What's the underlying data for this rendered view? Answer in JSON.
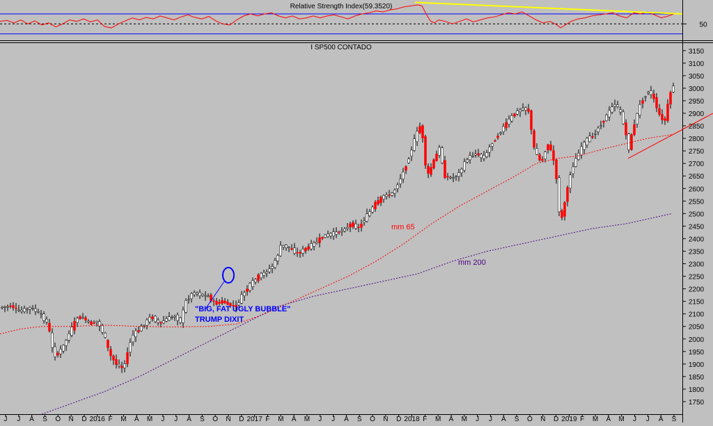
{
  "chart_data": [
    {
      "type": "line",
      "title": "Relative Strength Index(59.3520)",
      "y_ticks": [
        50
      ],
      "ylim": [
        20,
        95
      ],
      "reference_levels": [
        70,
        50,
        30
      ],
      "series": [
        {
          "role": "rsi",
          "color": "#ff0000",
          "points": [
            [
              0,
              55
            ],
            [
              10,
              57
            ],
            [
              20,
              52
            ],
            [
              30,
              58
            ],
            [
              40,
              50
            ],
            [
              50,
              56
            ],
            [
              60,
              48
            ],
            [
              70,
              52
            ],
            [
              80,
              44
            ],
            [
              90,
              50
            ],
            [
              100,
              58
            ],
            [
              110,
              55
            ],
            [
              120,
              60
            ],
            [
              130,
              54
            ],
            [
              140,
              58
            ],
            [
              150,
              45
            ],
            [
              160,
              42
            ],
            [
              170,
              50
            ],
            [
              180,
              56
            ],
            [
              190,
              62
            ],
            [
              200,
              58
            ],
            [
              210,
              63
            ],
            [
              220,
              60
            ],
            [
              230,
              66
            ],
            [
              240,
              62
            ],
            [
              250,
              58
            ],
            [
              260,
              64
            ],
            [
              270,
              68
            ],
            [
              280,
              63
            ],
            [
              290,
              60
            ],
            [
              300,
              65
            ],
            [
              310,
              56
            ],
            [
              320,
              50
            ],
            [
              330,
              48
            ],
            [
              340,
              58
            ],
            [
              350,
              66
            ],
            [
              360,
              70
            ],
            [
              370,
              66
            ],
            [
              380,
              70
            ],
            [
              390,
              72
            ],
            [
              400,
              66
            ],
            [
              410,
              62
            ],
            [
              420,
              66
            ],
            [
              430,
              60
            ],
            [
              440,
              62
            ],
            [
              450,
              66
            ],
            [
              460,
              62
            ],
            [
              470,
              66
            ],
            [
              480,
              68
            ],
            [
              490,
              64
            ],
            [
              500,
              60
            ],
            [
              510,
              66
            ],
            [
              520,
              70
            ],
            [
              530,
              72
            ],
            [
              540,
              76
            ],
            [
              550,
              74
            ],
            [
              560,
              78
            ],
            [
              570,
              80
            ],
            [
              580,
              84
            ],
            [
              590,
              86
            ],
            [
              600,
              88
            ],
            [
              606,
              86
            ],
            [
              612,
              70
            ],
            [
              618,
              56
            ],
            [
              624,
              52
            ],
            [
              630,
              58
            ],
            [
              640,
              55
            ],
            [
              650,
              50
            ],
            [
              660,
              55
            ],
            [
              670,
              60
            ],
            [
              680,
              54
            ],
            [
              690,
              58
            ],
            [
              700,
              62
            ],
            [
              710,
              64
            ],
            [
              720,
              68
            ],
            [
              730,
              72
            ],
            [
              740,
              70
            ],
            [
              750,
              74
            ],
            [
              760,
              66
            ],
            [
              770,
              58
            ],
            [
              780,
              52
            ],
            [
              790,
              55
            ],
            [
              800,
              48
            ],
            [
              805,
              42
            ],
            [
              812,
              48
            ],
            [
              820,
              55
            ],
            [
              830,
              60
            ],
            [
              840,
              62
            ],
            [
              850,
              66
            ],
            [
              860,
              68
            ],
            [
              870,
              70
            ],
            [
              880,
              72
            ],
            [
              890,
              66
            ],
            [
              900,
              62
            ],
            [
              910,
              72
            ],
            [
              920,
              70
            ],
            [
              930,
              74
            ],
            [
              940,
              68
            ],
            [
              950,
              62
            ],
            [
              960,
              66
            ],
            [
              968,
              70
            ]
          ]
        },
        {
          "role": "trendline",
          "color": "#ffff00",
          "points": [
            [
              596,
              93
            ],
            [
              980,
              70
            ]
          ]
        }
      ]
    },
    {
      "type": "bar",
      "subtype": "candlestick",
      "title": "I SP500 CONTADO",
      "x_ticks": [
        "J",
        "J",
        "A",
        "S",
        "O",
        "N",
        "D",
        "2016",
        "F",
        "M",
        "A",
        "M",
        "J",
        "J",
        "A",
        "S",
        "O",
        "N",
        "D",
        "2017",
        "F",
        "M",
        "A",
        "M",
        "J",
        "J",
        "A",
        "S",
        "O",
        "N",
        "D",
        "2018",
        "F",
        "M",
        "A",
        "M",
        "J",
        "J",
        "A",
        "S",
        "O",
        "N",
        "D",
        "2019",
        "F",
        "M",
        "A",
        "M",
        "J",
        "J",
        "A",
        "S"
      ],
      "y_ticks": [
        1750,
        1800,
        1850,
        1900,
        1950,
        2000,
        2050,
        2100,
        2150,
        2200,
        2250,
        2300,
        2350,
        2400,
        2450,
        2500,
        2550,
        2600,
        2650,
        2700,
        2750,
        2800,
        2850,
        2900,
        2950,
        3000,
        3050,
        3100,
        3150
      ],
      "ylim": [
        1700,
        3180
      ],
      "annotations": [
        "\"BIG, FAT UGLY BUBBLE\"",
        "TRUMP DIXIT"
      ],
      "series": [
        {
          "name": "mm 65",
          "color": "#ff0000",
          "points": [
            [
              0,
              2020
            ],
            [
              30,
              2040
            ],
            [
              60,
              2050
            ],
            [
              100,
              2050
            ],
            [
              150,
              2055
            ],
            [
              200,
              2050
            ],
            [
              250,
              2048
            ],
            [
              300,
              2050
            ],
            [
              340,
              2060
            ],
            [
              380,
              2100
            ],
            [
              420,
              2150
            ],
            [
              460,
              2200
            ],
            [
              500,
              2250
            ],
            [
              540,
              2310
            ],
            [
              580,
              2380
            ],
            [
              620,
              2460
            ],
            [
              660,
              2530
            ],
            [
              700,
              2590
            ],
            [
              740,
              2650
            ],
            [
              770,
              2700
            ],
            [
              800,
              2720
            ],
            [
              830,
              2730
            ],
            [
              870,
              2760
            ],
            [
              900,
              2780
            ],
            [
              930,
              2800
            ],
            [
              965,
              2815
            ]
          ]
        },
        {
          "name": "mm 200",
          "color": "#4b0082",
          "points": [
            [
              60,
              1700
            ],
            [
              100,
              1740
            ],
            [
              150,
              1790
            ],
            [
              200,
              1850
            ],
            [
              250,
              1920
            ],
            [
              300,
              1990
            ],
            [
              350,
              2060
            ],
            [
              400,
              2130
            ],
            [
              450,
              2170
            ],
            [
              500,
              2200
            ],
            [
              550,
              2230
            ],
            [
              600,
              2260
            ],
            [
              650,
              2310
            ],
            [
              700,
              2350
            ],
            [
              750,
              2380
            ],
            [
              800,
              2410
            ],
            [
              850,
              2440
            ],
            [
              900,
              2460
            ],
            [
              965,
              2500
            ]
          ]
        },
        {
          "role": "trendline",
          "color": "#ff0000",
          "points": [
            [
              902,
              2720
            ],
            [
              1024,
              2900
            ]
          ]
        },
        {
          "role": "price",
          "colors": {
            "up": "#ffffff",
            "down": "#ff0000",
            "wick": "#000000"
          },
          "anchors": [
            [
              0,
              2125
            ],
            [
              18,
              2132
            ],
            [
              28,
              2110
            ],
            [
              45,
              2125
            ],
            [
              58,
              2100
            ],
            [
              70,
              2060
            ],
            [
              78,
              1930
            ],
            [
              90,
              1960
            ],
            [
              100,
              2020
            ],
            [
              112,
              2085
            ],
            [
              120,
              2085
            ],
            [
              130,
              2060
            ],
            [
              140,
              2070
            ],
            [
              150,
              2020
            ],
            [
              158,
              1940
            ],
            [
              168,
              1900
            ],
            [
              178,
              1880
            ],
            [
              190,
              2010
            ],
            [
              205,
              2050
            ],
            [
              218,
              2090
            ],
            [
              230,
              2060
            ],
            [
              240,
              2080
            ],
            [
              252,
              2090
            ],
            [
              260,
              2070
            ],
            [
              268,
              2150
            ],
            [
              278,
              2185
            ],
            [
              290,
              2175
            ],
            [
              300,
              2170
            ],
            [
              310,
              2140
            ],
            [
              320,
              2150
            ],
            [
              332,
              2135
            ],
            [
              340,
              2130
            ],
            [
              350,
              2180
            ],
            [
              360,
              2215
            ],
            [
              372,
              2250
            ],
            [
              385,
              2270
            ],
            [
              395,
              2300
            ],
            [
              405,
              2375
            ],
            [
              418,
              2360
            ],
            [
              428,
              2340
            ],
            [
              440,
              2360
            ],
            [
              452,
              2380
            ],
            [
              465,
              2410
            ],
            [
              480,
              2420
            ],
            [
              495,
              2435
            ],
            [
              505,
              2460
            ],
            [
              515,
              2440
            ],
            [
              525,
              2480
            ],
            [
              540,
              2540
            ],
            [
              552,
              2570
            ],
            [
              565,
              2580
            ],
            [
              578,
              2650
            ],
            [
              590,
              2740
            ],
            [
              598,
              2810
            ],
            [
              606,
              2860
            ],
            [
              614,
              2640
            ],
            [
              622,
              2700
            ],
            [
              632,
              2760
            ],
            [
              640,
              2650
            ],
            [
              650,
              2640
            ],
            [
              660,
              2660
            ],
            [
              672,
              2720
            ],
            [
              685,
              2740
            ],
            [
              695,
              2720
            ],
            [
              705,
              2770
            ],
            [
              715,
              2810
            ],
            [
              728,
              2860
            ],
            [
              740,
              2900
            ],
            [
              752,
              2920
            ],
            [
              760,
              2910
            ],
            [
              768,
              2760
            ],
            [
              778,
              2700
            ],
            [
              788,
              2780
            ],
            [
              798,
              2700
            ],
            [
              806,
              2450
            ],
            [
              812,
              2550
            ],
            [
              822,
              2680
            ],
            [
              832,
              2740
            ],
            [
              842,
              2790
            ],
            [
              852,
              2810
            ],
            [
              862,
              2850
            ],
            [
              872,
              2890
            ],
            [
              884,
              2940
            ],
            [
              894,
              2890
            ],
            [
              904,
              2760
            ],
            [
              912,
              2860
            ],
            [
              922,
              2950
            ],
            [
              932,
              2990
            ],
            [
              940,
              2960
            ],
            [
              948,
              2890
            ],
            [
              956,
              2870
            ],
            [
              962,
              2970
            ],
            [
              968,
              3010
            ]
          ],
          "down_zones": [
            [
              65,
              80
            ],
            [
              150,
              180
            ],
            [
              300,
              345
            ],
            [
              415,
              440
            ],
            [
              500,
              520
            ],
            [
              600,
              640
            ],
            [
              755,
              810
            ],
            [
              895,
              912
            ],
            [
              935,
              960
            ]
          ]
        }
      ]
    }
  ]
}
